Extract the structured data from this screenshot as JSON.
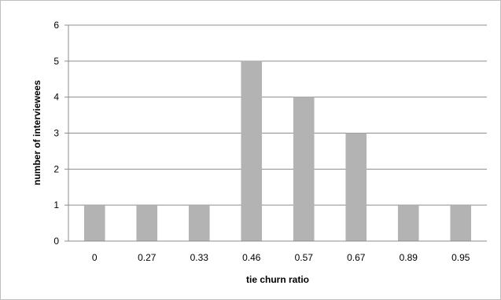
{
  "chart_data": {
    "type": "bar",
    "title": "",
    "xlabel": "tie churn ratio",
    "ylabel": "number of interviewees",
    "categories": [
      "0",
      "0.27",
      "0.33",
      "0.46",
      "0.57",
      "0.67",
      "0.89",
      "0.95"
    ],
    "values": [
      1,
      1,
      1,
      5,
      4,
      3,
      1,
      1
    ],
    "ylim": [
      0,
      6
    ],
    "yticks": [
      "0",
      "1",
      "2",
      "3",
      "4",
      "5",
      "6"
    ],
    "grid": true,
    "legend": "none",
    "colors": {
      "bar": "#b3b3b3",
      "grid": "#8c8c8c",
      "axis": "#8c8c8c"
    }
  }
}
